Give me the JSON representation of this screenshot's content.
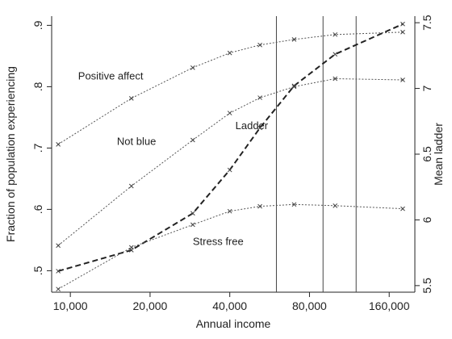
{
  "chart_data": {
    "type": "line",
    "xlabel": "Annual income",
    "ylabel_left": "Fraction of population experiencing",
    "ylabel_right": "Mean ladder",
    "x_scale": "log",
    "xlim": [
      8500,
      200000
    ],
    "ylim_left": [
      0.465,
      0.915
    ],
    "ylim_right": [
      5.45,
      7.55
    ],
    "x_ticks": [
      {
        "value": 10000,
        "label": "10,000"
      },
      {
        "value": 20000,
        "label": "20,000"
      },
      {
        "value": 40000,
        "label": "40,000"
      },
      {
        "value": 80000,
        "label": "80,000"
      },
      {
        "value": 160000,
        "label": "160,000"
      }
    ],
    "y_ticks_left": [
      {
        "value": 0.5,
        "label": ".5"
      },
      {
        "value": 0.6,
        "label": ".6"
      },
      {
        "value": 0.7,
        "label": ".7"
      },
      {
        "value": 0.8,
        "label": ".8"
      },
      {
        "value": 0.9,
        "label": ".9"
      }
    ],
    "y_ticks_right": [
      {
        "value": 5.5,
        "label": "5.5"
      },
      {
        "value": 6,
        "label": "6"
      },
      {
        "value": 6.5,
        "label": "6.5"
      },
      {
        "value": 7,
        "label": "7"
      },
      {
        "value": 7.5,
        "label": "7.5"
      }
    ],
    "vertical_lines": [
      60000,
      90000,
      120000
    ],
    "grid": false,
    "series": [
      {
        "name": "Positive affect",
        "axis": "left",
        "style": "dotted",
        "label_at": [
          10700,
          0.812
        ],
        "points": [
          [
            9000,
            0.706
          ],
          [
            17000,
            0.781
          ],
          [
            29000,
            0.831
          ],
          [
            40000,
            0.855
          ],
          [
            52000,
            0.868
          ],
          [
            70000,
            0.877
          ],
          [
            100000,
            0.885
          ],
          [
            180000,
            0.889
          ]
        ]
      },
      {
        "name": "Not blue",
        "axis": "left",
        "style": "dotted",
        "label_at": [
          15000,
          0.705
        ],
        "points": [
          [
            9000,
            0.541
          ],
          [
            17000,
            0.638
          ],
          [
            29000,
            0.713
          ],
          [
            40000,
            0.757
          ],
          [
            52000,
            0.782
          ],
          [
            70000,
            0.8
          ],
          [
            100000,
            0.813
          ],
          [
            180000,
            0.811
          ]
        ]
      },
      {
        "name": "Ladder",
        "axis": "right",
        "style": "dashed",
        "label_at": [
          42000,
          6.69
        ],
        "points": [
          [
            9000,
            5.61
          ],
          [
            17000,
            5.77
          ],
          [
            29000,
            6.05
          ],
          [
            40000,
            6.38
          ],
          [
            52000,
            6.7
          ],
          [
            70000,
            7.02
          ],
          [
            100000,
            7.26
          ],
          [
            180000,
            7.49
          ]
        ]
      },
      {
        "name": "Stress free",
        "axis": "left",
        "style": "dotted",
        "label_at": [
          29000,
          0.542
        ],
        "points": [
          [
            9000,
            0.47
          ],
          [
            17000,
            0.538
          ],
          [
            29000,
            0.575
          ],
          [
            40000,
            0.597
          ],
          [
            52000,
            0.605
          ],
          [
            70000,
            0.608
          ],
          [
            100000,
            0.606
          ],
          [
            180000,
            0.601
          ]
        ]
      }
    ]
  }
}
